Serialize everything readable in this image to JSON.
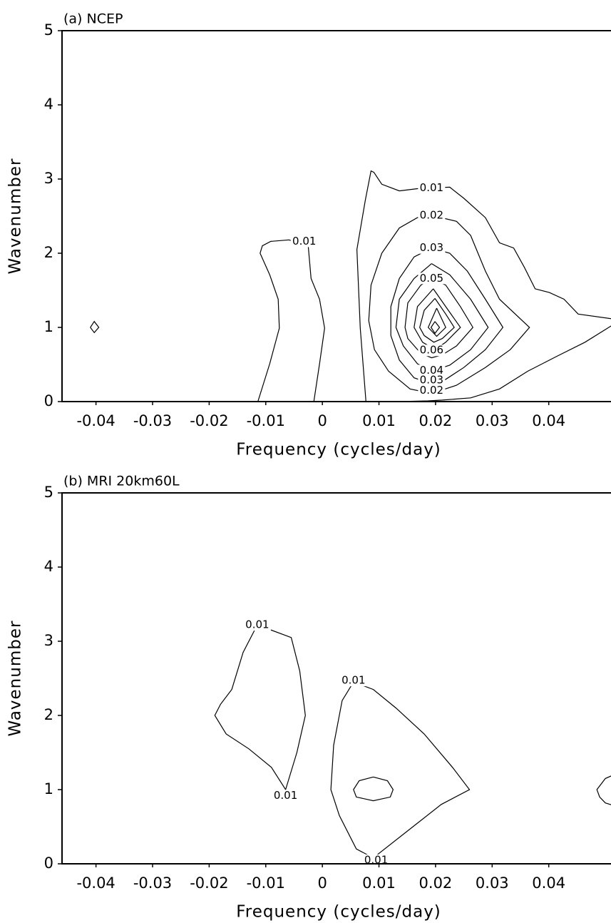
{
  "chart_data": [
    {
      "type": "contour",
      "title": "(a) NCEP",
      "x_label": "Frequency (cycles/day)",
      "y_label": "Wavenumber",
      "xlim": [
        -0.046,
        0.051
      ],
      "ylim": [
        0,
        5
      ],
      "xticks": [
        -0.04,
        -0.03,
        -0.02,
        -0.01,
        0,
        0.01,
        0.02,
        0.03,
        0.04
      ],
      "yticks": [
        0,
        1,
        2,
        3,
        4,
        5
      ],
      "contours": [
        {
          "x": [
            -0.041,
            -0.0403,
            -0.0395,
            -0.0403,
            -0.041
          ],
          "y": [
            1,
            1.08,
            1,
            0.93,
            1
          ]
        },
        {
          "x": [
            -0.0114,
            -0.0093,
            -0.0076,
            -0.0078,
            -0.0093,
            -0.011,
            -0.0106,
            -0.0091,
            -0.0059,
            -0.0025,
            -0.002,
            -0.0005,
            0.0004,
            -0.0005,
            -0.0015
          ],
          "y": [
            0,
            0.51,
            0.99,
            1.38,
            1.71,
            2.0,
            2.1,
            2.16,
            2.18,
            2.1,
            1.66,
            1.38,
            0.99,
            0.51,
            0
          ]
        },
        {
          "x": [
            0.0077,
            0.0067,
            0.0061,
            0.0076,
            0.0086,
            0.0091,
            0.0105,
            0.0136,
            0.0168,
            0.0193,
            0.0225,
            0.025,
            0.0288,
            0.0313,
            0.0338,
            0.0357,
            0.0376,
            0.0401,
            0.0427,
            0.0452,
            0.0527,
            0.0464,
            0.0414,
            0.0363,
            0.0313,
            0.0262,
            0.0212,
            0.0187,
            0.0136
          ],
          "y": [
            0,
            0.99,
            2.05,
            2.72,
            3.11,
            3.09,
            2.93,
            2.84,
            2.87,
            2.88,
            2.89,
            2.74,
            2.48,
            2.14,
            2.07,
            1.81,
            1.52,
            1.47,
            1.38,
            1.18,
            1.1,
            0.8,
            0.61,
            0.41,
            0.17,
            0.05,
            0.02,
            0.01,
            0
          ]
        },
        {
          "x": [
            0.0193,
            0.0237,
            0.0262,
            0.0288,
            0.0313,
            0.0366,
            0.0332,
            0.0288,
            0.0237,
            0.0193,
            0.0155,
            0.0117,
            0.0092,
            0.0082,
            0.0086,
            0.0105,
            0.0136,
            0.0168,
            0.0193
          ],
          "y": [
            2.51,
            2.43,
            2.24,
            1.76,
            1.38,
            1.0,
            0.7,
            0.46,
            0.22,
            0.11,
            0.17,
            0.41,
            0.7,
            1.09,
            1.57,
            2.0,
            2.34,
            2.48,
            2.51
          ]
        },
        {
          "x": [
            0.0193,
            0.0225,
            0.0256,
            0.0288,
            0.0319,
            0.0288,
            0.025,
            0.0212,
            0.0193,
            0.0162,
            0.0136,
            0.0121,
            0.0121,
            0.0136,
            0.0162,
            0.0193
          ],
          "y": [
            2.07,
            2.0,
            1.76,
            1.38,
            1.0,
            0.7,
            0.46,
            0.27,
            0.24,
            0.32,
            0.56,
            0.89,
            1.28,
            1.66,
            1.95,
            2.07
          ]
        },
        {
          "x": [
            0.0193,
            0.0225,
            0.0262,
            0.0293,
            0.0262,
            0.0225,
            0.0193,
            0.0168,
            0.0143,
            0.013,
            0.0136,
            0.0162,
            0.0193
          ],
          "y": [
            1.86,
            1.71,
            1.38,
            1.0,
            0.7,
            0.49,
            0.41,
            0.51,
            0.75,
            1.0,
            1.38,
            1.66,
            1.86
          ]
        },
        {
          "x": [
            0.0193,
            0.0218,
            0.0244,
            0.0266,
            0.0237,
            0.0212,
            0.0193,
            0.0174,
            0.0151,
            0.0146,
            0.0151,
            0.0174,
            0.0193
          ],
          "y": [
            1.66,
            1.57,
            1.28,
            1.0,
            0.75,
            0.63,
            0.59,
            0.65,
            0.85,
            1.0,
            1.33,
            1.57,
            1.66
          ]
        },
        {
          "x": [
            0.0196,
            0.0218,
            0.0244,
            0.0218,
            0.0199,
            0.0177,
            0.0162,
            0.0168,
            0.0196
          ],
          "y": [
            1.52,
            1.28,
            1.0,
            0.8,
            0.7,
            0.8,
            1.0,
            1.28,
            1.52
          ]
        },
        {
          "x": [
            0.0199,
            0.0218,
            0.0233,
            0.0212,
            0.0197,
            0.018,
            0.0172,
            0.018,
            0.0199
          ],
          "y": [
            1.39,
            1.18,
            1.0,
            0.85,
            0.8,
            0.89,
            1.0,
            1.23,
            1.39
          ]
        },
        {
          "x": [
            0.0202,
            0.0218,
            0.0202,
            0.0187,
            0.0202
          ],
          "y": [
            1.26,
            1.0,
            0.88,
            1.0,
            1.26
          ]
        },
        {
          "x": [
            0.0199,
            0.0207,
            0.0199,
            0.0192,
            0.0199
          ],
          "y": [
            1.08,
            1.0,
            0.92,
            1.0,
            1.08
          ]
        }
      ],
      "contour_labels": [
        {
          "value": 0.01,
          "x": 0.0193,
          "y": 2.88
        },
        {
          "value": 0.02,
          "x": 0.0193,
          "y": 2.51
        },
        {
          "value": 0.03,
          "x": 0.0193,
          "y": 2.07
        },
        {
          "value": 0.05,
          "x": 0.0193,
          "y": 1.66
        },
        {
          "value": 0.06,
          "x": 0.0193,
          "y": 0.69
        },
        {
          "value": 0.04,
          "x": 0.0193,
          "y": 0.42
        },
        {
          "value": 0.03,
          "x": 0.0193,
          "y": 0.29
        },
        {
          "value": 0.02,
          "x": 0.0193,
          "y": 0.15
        },
        {
          "value": 0.01,
          "x": -0.0032,
          "y": 2.16
        }
      ]
    },
    {
      "type": "contour",
      "title": "(b) MRI 20km60L",
      "x_label": "Frequency (cycles/day)",
      "y_label": "Wavenumber",
      "xlim": [
        -0.046,
        0.051
      ],
      "ylim": [
        0,
        5
      ],
      "xticks": [
        -0.04,
        -0.03,
        -0.02,
        -0.01,
        0,
        0.01,
        0.02,
        0.03,
        0.04
      ],
      "yticks": [
        0,
        1,
        2,
        3,
        4,
        5
      ],
      "contours": [
        {
          "x": [
            -0.0115,
            -0.0055,
            -0.004,
            -0.003,
            -0.0045,
            -0.0065,
            -0.009,
            -0.013,
            -0.017,
            -0.019,
            -0.018,
            -0.016,
            -0.014,
            -0.0115
          ],
          "y": [
            3.22,
            3.05,
            2.6,
            2.0,
            1.5,
            1.0,
            1.3,
            1.55,
            1.75,
            2.0,
            2.15,
            2.35,
            2.85,
            3.22
          ]
        },
        {
          "x": [
            0.0055,
            0.009,
            0.013,
            0.018,
            0.023,
            0.026,
            0.021,
            0.016,
            0.009,
            0.006,
            0.003,
            0.0015,
            0.002,
            0.0035,
            0.0055
          ],
          "y": [
            2.45,
            2.35,
            2.1,
            1.75,
            1.3,
            1.0,
            0.8,
            0.5,
            0.08,
            0.2,
            0.65,
            1.0,
            1.6,
            2.2,
            2.45
          ]
        },
        {
          "x": [
            0.009,
            0.0115,
            0.0125,
            0.012,
            0.009,
            0.006,
            0.0055,
            0.0065,
            0.009
          ],
          "y": [
            1.17,
            1.12,
            1.0,
            0.9,
            0.85,
            0.9,
            1.0,
            1.12,
            1.17
          ]
        },
        {
          "x": [
            0.053,
            0.05,
            0.0485,
            0.049,
            0.05,
            0.053
          ],
          "y": [
            1.25,
            1.15,
            1.0,
            0.9,
            0.82,
            0.75
          ]
        }
      ],
      "contour_labels": [
        {
          "value": 0.01,
          "x": -0.0115,
          "y": 3.22
        },
        {
          "value": 0.01,
          "x": -0.0065,
          "y": 0.92
        },
        {
          "value": 0.01,
          "x": 0.0055,
          "y": 2.47
        },
        {
          "value": 0.01,
          "x": 0.0095,
          "y": 0.05
        }
      ]
    }
  ]
}
